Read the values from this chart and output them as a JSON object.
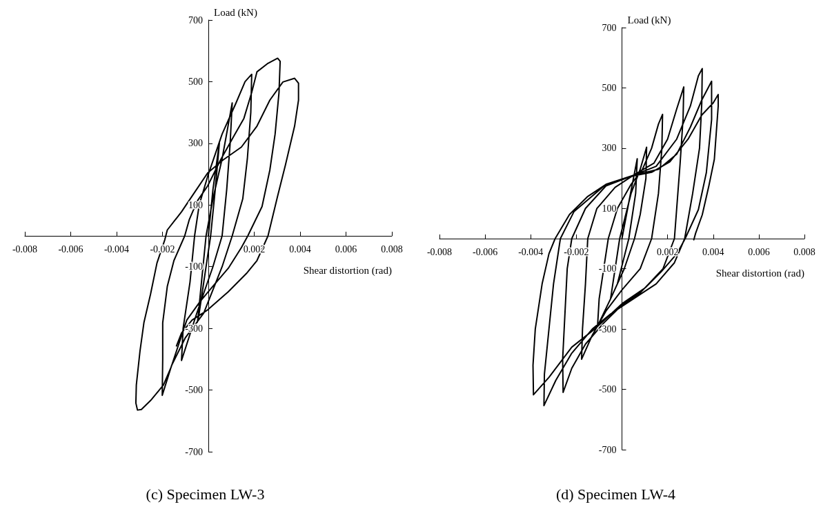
{
  "chart_data": [
    {
      "type": "line",
      "title": "(c) Specimen LW-3",
      "xlabel": "Shear distortion (rad)",
      "ylabel": "Load (kN)",
      "xlim": [
        -0.008,
        0.008
      ],
      "xticks": [
        -0.008,
        -0.006,
        -0.004,
        -0.002,
        0.002,
        0.004,
        0.006,
        0.008
      ],
      "ylim": [
        -700,
        700
      ],
      "yticks": [
        -700,
        -500,
        -300,
        -100,
        100,
        300,
        500,
        700
      ],
      "grid": false,
      "marker": "none",
      "line_style": "solid",
      "series": [
        {
          "color": "#000000",
          "x": [
            0,
            0.0002,
            0.00048,
            0.0003,
            0.0001,
            -0.0002,
            -0.00042,
            -0.00048,
            -0.00045,
            -0.0003,
            -0.0001,
            0.0002,
            0.0006,
            0.00104,
            0.00095,
            0.0008,
            0.0006,
            0.0002,
            -0.0005,
            -0.00117,
            -0.0011,
            -0.0008,
            -0.0006,
            -0.0004,
            0,
            0.0006,
            0.0012,
            0.0016,
            0.00189,
            0.00185,
            0.0017,
            0.0015,
            0.00104,
            0.0006,
            -0.0002,
            -0.001,
            -0.0016,
            -0.00201,
            -0.00199,
            -0.00199,
            -0.00179,
            -0.0015,
            -0.00103,
            -0.00083,
            -0.00049,
            -3e-05,
            0.00053,
            0.0011,
            0.00155,
            0.00189,
            0.00212,
            0.00257,
            0.00302,
            0.00313,
            0.00308,
            0.00291,
            0.00268,
            0.00234,
            0.00172,
            0.00144,
            0.00087,
            0.00019,
            -0.00037,
            -0.00094,
            -0.00128,
            -0.00162,
            -0.00196,
            -0.00252,
            -0.00292,
            -0.00309,
            -0.00316,
            -0.00314,
            -0.00298,
            -0.00281,
            -0.00252,
            -0.00224,
            -0.0019,
            -0.00179,
            -0.00117,
            -0.00071,
            -3e-05,
            0.00064,
            0.00144,
            0.00212,
            0.00268,
            0.00325,
            0.00376,
            0.00393,
            0.00393,
            0.00376,
            0.00336,
            0.00302,
            0.0026,
            0.00212,
            0.00166,
            0.00087,
            -3e-05,
            -0.00071,
            -0.00117,
            -0.00139
          ],
          "values": [
            0,
            150,
            301,
            150,
            0,
            -150,
            -260,
            -280,
            -265,
            -150,
            0,
            120,
            250,
            431,
            300,
            150,
            0,
            -100,
            -250,
            -404,
            -300,
            -150,
            0,
            100,
            200,
            330,
            430,
            500,
            524,
            400,
            250,
            120,
            0,
            -100,
            -250,
            -330,
            -420,
            -517,
            -400,
            -282,
            -164,
            -80,
            0,
            53,
            112,
            162,
            246,
            322,
            381,
            465,
            532,
            558,
            576,
            566,
            465,
            330,
            213,
            95,
            0,
            -38,
            -105,
            -164,
            -214,
            -273,
            -349,
            -425,
            -484,
            -534,
            -563,
            -565,
            -542,
            -484,
            -374,
            -282,
            -189,
            -88,
            -13,
            19,
            78,
            129,
            204,
            246,
            288,
            356,
            440,
            499,
            511,
            495,
            440,
            356,
            230,
            129,
            0,
            -80,
            -122,
            -181,
            -240,
            -273,
            -315,
            -357
          ]
        }
      ]
    },
    {
      "type": "line",
      "title": "(d) Specimen LW-4",
      "xlabel": "Shear distortion (rad)",
      "ylabel": "Load (kN)",
      "xlim": [
        -0.008,
        0.008
      ],
      "xticks": [
        -0.008,
        -0.006,
        -0.004,
        -0.002,
        0.002,
        0.004,
        0.006,
        0.008
      ],
      "ylim": [
        -700,
        700
      ],
      "yticks": [
        -700,
        -500,
        -300,
        -100,
        100,
        300,
        500,
        700
      ],
      "grid": false,
      "marker": "none",
      "line_style": "solid",
      "series": [
        {
          "color": "#000000",
          "x": [
            0,
            0.0003,
            0.00067,
            0.0006,
            0.0003,
            -0.0002,
            -0.0005,
            -0.0003,
            -0.0001,
            0.0004,
            0.0008,
            0.00108,
            0.00105,
            0.0008,
            0.00055,
            0.0001,
            -0.0005,
            -0.00107,
            -0.001,
            -0.0008,
            -0.0006,
            -0.0002,
            0.0004,
            0.0009,
            0.0013,
            0.0016,
            0.00178,
            0.00175,
            0.0016,
            0.0013,
            0.0008,
            0,
            -0.0007,
            -0.0013,
            -0.00177,
            -0.00173,
            -0.0016,
            -0.0015,
            -0.0011,
            -0.0003,
            0.0006,
            0.0014,
            0.002,
            0.0024,
            0.00271,
            0.00268,
            0.00255,
            0.0024,
            0.0023,
            0.0018,
            0.0008,
            0,
            -0.0008,
            -0.0016,
            -0.0022,
            -0.00258,
            -0.0026,
            -0.0025,
            -0.0024,
            -0.0022,
            -0.0016,
            -0.0007,
            0.0005,
            0.0015,
            0.0024,
            0.003,
            0.00335,
            0.00352,
            0.0035,
            0.0034,
            0.0031,
            0.00275,
            0.0023,
            0.0015,
            0.0005,
            -0.0005,
            -0.0013,
            -0.0022,
            -0.0029,
            -0.00342,
            -0.0034,
            -0.0032,
            -0.003,
            -0.0027,
            -0.0021,
            -0.0007,
            0.0005,
            0.0016,
            0.0024,
            0.003,
            0.0035,
            0.00393,
            0.00393,
            0.0037,
            0.00335,
            0.00277,
            0.00242,
            0.00172,
            0.00102,
            0,
            -0.0012,
            -0.0022,
            -0.0032,
            -0.00388,
            -0.0039,
            -0.0038,
            -0.0035,
            -0.0032,
            -0.00293,
            -0.0023,
            -0.0015,
            -0.0007,
            0.0003,
            0.0013,
            0.0021,
            0.0029,
            0.0035,
            0.004,
            0.00422,
            0.00422,
            0.00405,
            0.00381,
            0.00352,
            0.00323,
            0.00315
          ],
          "values": [
            0,
            120,
            265,
            150,
            0,
            -150,
            -200,
            -100,
            0,
            150,
            230,
            303,
            200,
            80,
            0,
            -100,
            -200,
            -290,
            -200,
            -100,
            0,
            100,
            180,
            230,
            300,
            380,
            412,
            300,
            150,
            0,
            -100,
            -170,
            -240,
            -320,
            -400,
            -300,
            -150,
            0,
            100,
            170,
            215,
            250,
            330,
            430,
            503,
            400,
            250,
            100,
            0,
            -100,
            -180,
            -220,
            -280,
            -350,
            -430,
            -510,
            -400,
            -250,
            -100,
            0,
            100,
            175,
            210,
            240,
            330,
            440,
            540,
            564,
            450,
            300,
            150,
            0,
            -80,
            -150,
            -200,
            -250,
            -300,
            -380,
            -470,
            -554,
            -450,
            -300,
            -150,
            0,
            90,
            180,
            210,
            230,
            280,
            370,
            460,
            522,
            395,
            219,
            96,
            0,
            -49,
            -110,
            -163,
            -216,
            -300,
            -360,
            -460,
            -518,
            -420,
            -300,
            -150,
            -50,
            0,
            80,
            140,
            180,
            205,
            220,
            255,
            330,
            410,
            450,
            478,
            440,
            263,
            175,
            79,
            18,
            -4
          ]
        }
      ]
    }
  ]
}
